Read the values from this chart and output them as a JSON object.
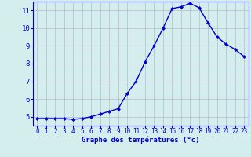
{
  "x": [
    0,
    1,
    2,
    3,
    4,
    5,
    6,
    7,
    8,
    9,
    10,
    11,
    12,
    13,
    14,
    15,
    16,
    17,
    18,
    19,
    20,
    21,
    22,
    23
  ],
  "y": [
    4.9,
    4.9,
    4.9,
    4.9,
    4.85,
    4.9,
    5.0,
    5.15,
    5.3,
    5.45,
    6.3,
    7.0,
    8.1,
    9.0,
    10.0,
    11.1,
    11.2,
    11.4,
    11.15,
    10.3,
    9.5,
    9.1,
    8.8,
    8.4
  ],
  "line_color": "#0000cc",
  "marker": "D",
  "marker_size": 2.0,
  "bg_color": "#d4eeee",
  "grid_color": "#b8b8cc",
  "xlabel": "Graphe des températures (°c)",
  "xlabel_color": "#0000cc",
  "tick_color": "#0000cc",
  "xlim": [
    -0.5,
    23.5
  ],
  "ylim": [
    4.5,
    11.5
  ],
  "yticks": [
    5,
    6,
    7,
    8,
    9,
    10,
    11
  ],
  "xticks": [
    0,
    1,
    2,
    3,
    4,
    5,
    6,
    7,
    8,
    9,
    10,
    11,
    12,
    13,
    14,
    15,
    16,
    17,
    18,
    19,
    20,
    21,
    22,
    23
  ],
  "line_width": 1.0,
  "tick_fontsize": 5.5,
  "xlabel_fontsize": 6.5,
  "ytick_fontsize": 6.5
}
